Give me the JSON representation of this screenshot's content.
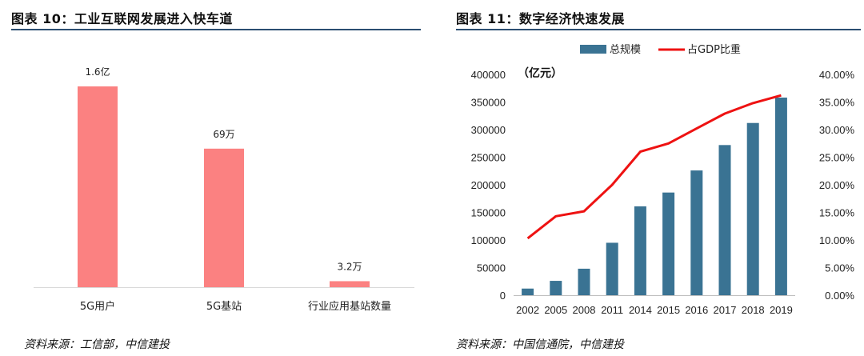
{
  "left": {
    "title": "图表 10：工业互联网发展进入快车道",
    "source": "资料来源：工信部，中信建投"
  },
  "right": {
    "title": "图表 11：数字经济快速发展",
    "source": "资料来源：中国信通院，中信建投"
  },
  "colors": {
    "left_bar": "#fb8181",
    "right_bar": "#3a7393",
    "line": "#ee1212",
    "rule": "#2b4e72"
  },
  "chart_data": [
    {
      "type": "bar",
      "categories": [
        "5G用户",
        "5G基站",
        "行业应用基站数量"
      ],
      "values": [
        160000,
        69,
        3.2
      ],
      "data_labels": [
        "1.6亿",
        "69万",
        "3.2万"
      ],
      "title": "图表 10：工业互联网发展进入快车道",
      "xlabel": "",
      "ylabel": "",
      "grid": false
    },
    {
      "type": "bar",
      "categories": [
        "2002",
        "2005",
        "2008",
        "2011",
        "2014",
        "2015",
        "2016",
        "2017",
        "2018",
        "2019"
      ],
      "series": [
        {
          "name": "总规模",
          "type": "bar",
          "axis": "left",
          "values": [
            12000,
            26000,
            48000,
            95000,
            161000,
            186000,
            226000,
            272000,
            312000,
            358000
          ]
        },
        {
          "name": "占GDP比重",
          "type": "line",
          "axis": "right",
          "values": [
            0.103,
            0.143,
            0.152,
            0.2,
            0.26,
            0.275,
            0.302,
            0.329,
            0.348,
            0.362
          ]
        }
      ],
      "y_unit_label": "（亿元）",
      "yticks": [
        "0",
        "50000",
        "100000",
        "150000",
        "200000",
        "250000",
        "300000",
        "350000",
        "400000"
      ],
      "y2ticks": [
        "0.00%",
        "5.00%",
        "10.00%",
        "15.00%",
        "20.00%",
        "25.00%",
        "30.00%",
        "35.00%",
        "40.00%"
      ],
      "ylim": [
        0,
        400000
      ],
      "y2lim": [
        0,
        0.4
      ],
      "title": "图表 11：数字经济快速发展",
      "legend": "top",
      "grid": false
    }
  ]
}
